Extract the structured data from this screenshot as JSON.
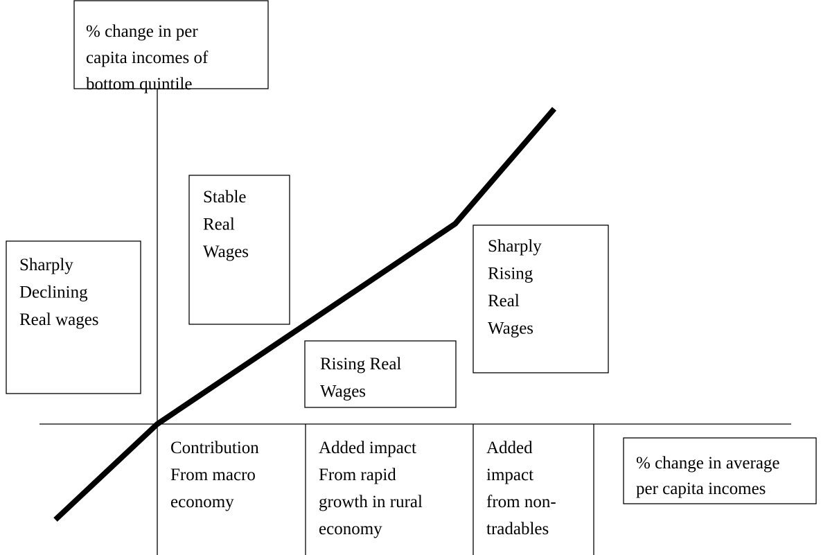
{
  "y_axis_label": {
    "lines": [
      "% change in per",
      "capita incomes of",
      "bottom quintile"
    ]
  },
  "x_axis_label": {
    "lines": [
      "% change in average",
      "per capita incomes"
    ]
  },
  "regions": [
    {
      "lines": [
        "Sharply",
        "Declining",
        "Real wages"
      ]
    },
    {
      "lines": [
        "Stable",
        "Real",
        "Wages"
      ]
    },
    {
      "lines": [
        "Rising Real",
        "Wages"
      ]
    },
    {
      "lines": [
        "Sharply",
        "Rising",
        "Real",
        "Wages"
      ]
    }
  ],
  "components": [
    {
      "lines": [
        "Contribution",
        "From macro",
        "economy"
      ]
    },
    {
      "lines": [
        "Added impact",
        "From rapid",
        "growth in rural",
        "economy"
      ]
    },
    {
      "lines": [
        "Added",
        "impact",
        "from non-",
        "tradables"
      ]
    }
  ]
}
